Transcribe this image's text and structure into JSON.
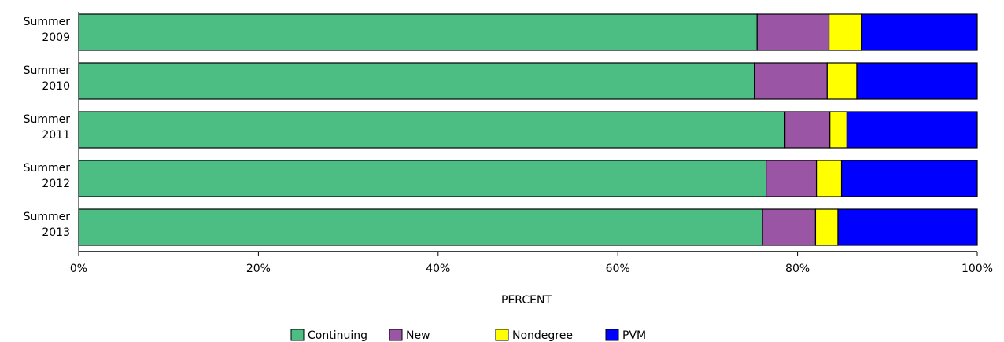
{
  "chart_data": {
    "type": "bar",
    "orientation": "horizontal",
    "stacked": "percent",
    "categories": [
      [
        "Summer",
        "2009"
      ],
      [
        "Summer",
        "2010"
      ],
      [
        "Summer",
        "2011"
      ],
      [
        "Summer",
        "2012"
      ],
      [
        "Summer",
        "2013"
      ]
    ],
    "series": [
      {
        "name": "Continuing",
        "color": "#4cbd83",
        "values": [
          75.5,
          75.2,
          78.6,
          76.5,
          76.1
        ]
      },
      {
        "name": "New",
        "color": "#9a55a5",
        "values": [
          8.0,
          8.1,
          5.0,
          5.6,
          5.9
        ]
      },
      {
        "name": "Nondegree",
        "color": "#ffff00",
        "values": [
          3.6,
          3.3,
          1.9,
          2.8,
          2.5
        ]
      },
      {
        "name": "PVM",
        "color": "#0000ff",
        "values": [
          12.9,
          13.4,
          14.5,
          15.1,
          15.5
        ]
      }
    ],
    "xlabel": "PERCENT",
    "xlim": [
      0,
      100
    ],
    "xticks": [
      "0%",
      "20%",
      "40%",
      "60%",
      "80%",
      "100%"
    ],
    "grid": false,
    "legend_position": "bottom"
  }
}
